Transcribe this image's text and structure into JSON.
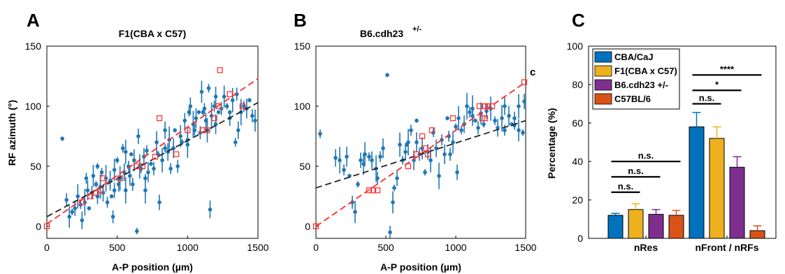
{
  "panels": {
    "A": {
      "letter": "A",
      "title": "F1(CBA x C57)"
    },
    "B": {
      "letter": "B",
      "title": "B6.cdh23",
      "title_sup": "+/-",
      "annotation": "c"
    },
    "C": {
      "letter": "C"
    }
  },
  "colors": {
    "point": "#1f77b4",
    "square": "#ff3333",
    "fit_red": "#ff2a2a",
    "fit_black": "#222222",
    "CBA/CaJ": "#0072bd",
    "F1(CBA x C57)": "#edb120",
    "B6.cdh23 +/-": "#7e2f8e",
    "C57BL/6": "#d95319"
  },
  "chart_data": [
    {
      "type": "scatter",
      "panel": "A",
      "title": "F1(CBA x C57)",
      "xlabel": "A-P position (µm)",
      "ylabel": "RF azimuth (°)",
      "xlim": [
        0,
        1500
      ],
      "ylim": [
        -10,
        150
      ],
      "xticks": [
        0,
        500,
        1000,
        1500
      ],
      "yticks": [
        0,
        50,
        100,
        150
      ],
      "points": [
        [
          110,
          73
        ],
        [
          140,
          22
        ],
        [
          160,
          8
        ],
        [
          180,
          12
        ],
        [
          200,
          15
        ],
        [
          220,
          25
        ],
        [
          240,
          18
        ],
        [
          250,
          5
        ],
        [
          270,
          20
        ],
        [
          280,
          40
        ],
        [
          290,
          30
        ],
        [
          300,
          15
        ],
        [
          320,
          28
        ],
        [
          330,
          42
        ],
        [
          350,
          35
        ],
        [
          360,
          25
        ],
        [
          380,
          33
        ],
        [
          390,
          45
        ],
        [
          400,
          28
        ],
        [
          420,
          40
        ],
        [
          430,
          20
        ],
        [
          450,
          38
        ],
        [
          460,
          25
        ],
        [
          470,
          8
        ],
        [
          480,
          47
        ],
        [
          500,
          55
        ],
        [
          510,
          35
        ],
        [
          520,
          40
        ],
        [
          540,
          65
        ],
        [
          550,
          45
        ],
        [
          560,
          30
        ],
        [
          580,
          50
        ],
        [
          590,
          42
        ],
        [
          600,
          60
        ],
        [
          610,
          35
        ],
        [
          620,
          55
        ],
        [
          640,
          -4
        ],
        [
          650,
          75
        ],
        [
          660,
          50
        ],
        [
          670,
          48
        ],
        [
          690,
          58
        ],
        [
          700,
          30
        ],
        [
          710,
          63
        ],
        [
          720,
          45
        ],
        [
          740,
          52
        ],
        [
          760,
          48
        ],
        [
          780,
          70
        ],
        [
          790,
          60
        ],
        [
          800,
          20
        ],
        [
          820,
          55
        ],
        [
          840,
          65
        ],
        [
          860,
          62
        ],
        [
          870,
          72
        ],
        [
          880,
          48
        ],
        [
          900,
          65
        ],
        [
          910,
          80
        ],
        [
          930,
          50
        ],
        [
          950,
          75
        ],
        [
          960,
          70
        ],
        [
          980,
          88
        ],
        [
          1000,
          72
        ],
        [
          1010,
          95
        ],
        [
          1020,
          100
        ],
        [
          1040,
          85
        ],
        [
          1050,
          80
        ],
        [
          1060,
          90
        ],
        [
          1080,
          95
        ],
        [
          1090,
          78
        ],
        [
          1100,
          112
        ],
        [
          1110,
          95
        ],
        [
          1130,
          88
        ],
        [
          1140,
          80
        ],
        [
          1150,
          115
        ],
        [
          1160,
          14
        ],
        [
          1170,
          92
        ],
        [
          1190,
          100
        ],
        [
          1200,
          85
        ],
        [
          1220,
          95
        ],
        [
          1240,
          98
        ],
        [
          1260,
          108
        ],
        [
          1280,
          100
        ],
        [
          1300,
          90
        ],
        [
          1320,
          105
        ],
        [
          1340,
          70
        ],
        [
          1360,
          80
        ],
        [
          1380,
          95
        ],
        [
          1400,
          100
        ],
        [
          1420,
          98
        ],
        [
          1440,
          105
        ],
        [
          1460,
          92
        ],
        [
          1480,
          88
        ],
        [
          360,
          50
        ],
        [
          480,
          30
        ],
        [
          560,
          62
        ],
        [
          700,
          40
        ],
        [
          840,
          80
        ],
        [
          1000,
          68
        ],
        [
          1120,
          98
        ],
        [
          1200,
          108
        ],
        [
          1300,
          95
        ],
        [
          1350,
          110
        ]
      ],
      "squares": [
        [
          0,
          0
        ],
        [
          250,
          20
        ],
        [
          310,
          25
        ],
        [
          350,
          28
        ],
        [
          380,
          30
        ],
        [
          400,
          40
        ],
        [
          520,
          40
        ],
        [
          640,
          50
        ],
        [
          680,
          50
        ],
        [
          770,
          58
        ],
        [
          800,
          90
        ],
        [
          920,
          60
        ],
        [
          1000,
          80
        ],
        [
          1110,
          80
        ],
        [
          1140,
          80
        ],
        [
          1190,
          90
        ],
        [
          1220,
          100
        ],
        [
          1230,
          130
        ],
        [
          1300,
          110
        ],
        [
          1390,
          100
        ]
      ],
      "fits": {
        "red": {
          "x": [
            0,
            1500
          ],
          "y": [
            2,
            123
          ]
        },
        "black": {
          "x": [
            0,
            1500
          ],
          "y": [
            8,
            103
          ]
        }
      }
    },
    {
      "type": "scatter",
      "panel": "B",
      "title": "B6.cdh23 +/-",
      "xlabel": "A-P position (µm)",
      "ylabel": "",
      "xlim": [
        0,
        1500
      ],
      "ylim": [
        -10,
        150
      ],
      "xticks": [
        0,
        500,
        1000,
        1500
      ],
      "yticks": [
        0,
        50,
        100,
        150
      ],
      "points": [
        [
          30,
          77
        ],
        [
          140,
          57
        ],
        [
          170,
          55
        ],
        [
          200,
          47
        ],
        [
          220,
          58
        ],
        [
          240,
          42
        ],
        [
          260,
          20
        ],
        [
          280,
          12
        ],
        [
          300,
          35
        ],
        [
          320,
          55
        ],
        [
          350,
          60
        ],
        [
          380,
          58
        ],
        [
          400,
          55
        ],
        [
          430,
          48
        ],
        [
          460,
          58
        ],
        [
          480,
          65
        ],
        [
          510,
          126
        ],
        [
          530,
          -5
        ],
        [
          550,
          20
        ],
        [
          560,
          32
        ],
        [
          580,
          40
        ],
        [
          600,
          68
        ],
        [
          620,
          55
        ],
        [
          640,
          62
        ],
        [
          660,
          70
        ],
        [
          680,
          80
        ],
        [
          700,
          55
        ],
        [
          720,
          88
        ],
        [
          740,
          60
        ],
        [
          760,
          65
        ],
        [
          780,
          45
        ],
        [
          800,
          62
        ],
        [
          820,
          55
        ],
        [
          840,
          78
        ],
        [
          860,
          65
        ],
        [
          880,
          42
        ],
        [
          900,
          72
        ],
        [
          920,
          60
        ],
        [
          940,
          90
        ],
        [
          960,
          60
        ],
        [
          980,
          70
        ],
        [
          1000,
          83
        ],
        [
          1010,
          45
        ],
        [
          1020,
          90
        ],
        [
          1040,
          80
        ],
        [
          1060,
          85
        ],
        [
          1080,
          100
        ],
        [
          1100,
          95
        ],
        [
          1120,
          92
        ],
        [
          1140,
          88
        ],
        [
          1160,
          82
        ],
        [
          1180,
          94
        ],
        [
          1200,
          85
        ],
        [
          1220,
          96
        ],
        [
          1250,
          98
        ],
        [
          1280,
          88
        ],
        [
          1300,
          82
        ],
        [
          1330,
          90
        ],
        [
          1350,
          80
        ],
        [
          1380,
          92
        ],
        [
          1400,
          85
        ],
        [
          1420,
          90
        ],
        [
          1450,
          80
        ],
        [
          1480,
          78
        ],
        [
          1490,
          104
        ],
        [
          1450,
          100
        ],
        [
          1420,
          84
        ],
        [
          1350,
          100
        ],
        [
          1120,
          98
        ],
        [
          950,
          75
        ],
        [
          720,
          70
        ],
        [
          650,
          68
        ],
        [
          440,
          40
        ],
        [
          340,
          52
        ]
      ],
      "squares": [
        [
          0,
          0
        ],
        [
          380,
          30
        ],
        [
          410,
          30
        ],
        [
          440,
          30
        ],
        [
          660,
          50
        ],
        [
          720,
          60
        ],
        [
          760,
          75
        ],
        [
          780,
          65
        ],
        [
          800,
          60
        ],
        [
          830,
          80
        ],
        [
          980,
          90
        ],
        [
          1170,
          100
        ],
        [
          1190,
          90
        ],
        [
          1210,
          90
        ],
        [
          1210,
          100
        ],
        [
          1230,
          100
        ],
        [
          1260,
          100
        ],
        [
          1490,
          120
        ]
      ],
      "fits": {
        "red": {
          "x": [
            0,
            1500
          ],
          "y": [
            0,
            120
          ]
        },
        "black": {
          "x": [
            0,
            1500
          ],
          "y": [
            32,
            88
          ]
        }
      }
    },
    {
      "type": "bar",
      "panel": "C",
      "title": "",
      "xlabel": "",
      "ylabel": "Percentage (%)",
      "ylim": [
        0,
        100
      ],
      "yticks": [
        0,
        20,
        40,
        60,
        80,
        100
      ],
      "categories": [
        "nRes",
        "nFront / nRFs"
      ],
      "series": [
        {
          "name": "CBA/CaJ",
          "values": [
            12,
            58
          ],
          "errors": [
            1,
            7.5
          ]
        },
        {
          "name": "F1(CBA x C57)",
          "values": [
            15,
            52
          ],
          "errors": [
            3,
            6
          ]
        },
        {
          "name": "B6.cdh23 +/-",
          "values": [
            12.5,
            37
          ],
          "errors": [
            2.5,
            5.5
          ]
        },
        {
          "name": "C57BL/6",
          "values": [
            12,
            4
          ],
          "errors": [
            2.5,
            2.5
          ]
        }
      ],
      "legend_placement": "top-left",
      "significance": [
        {
          "label": "n.s.",
          "category": 0,
          "from": 0,
          "to": 1,
          "level": 24
        },
        {
          "label": "n.s.",
          "category": 0,
          "from": 0,
          "to": 2,
          "level": 32
        },
        {
          "label": "n.s.",
          "category": 0,
          "from": 0,
          "to": 3,
          "level": 40
        },
        {
          "label": "n.s.",
          "category": 1,
          "from": 0,
          "to": 1,
          "level": 70
        },
        {
          "label": "*",
          "category": 1,
          "from": 0,
          "to": 2,
          "level": 77
        },
        {
          "label": "****",
          "category": 1,
          "from": 0,
          "to": 3,
          "level": 85
        }
      ]
    }
  ]
}
